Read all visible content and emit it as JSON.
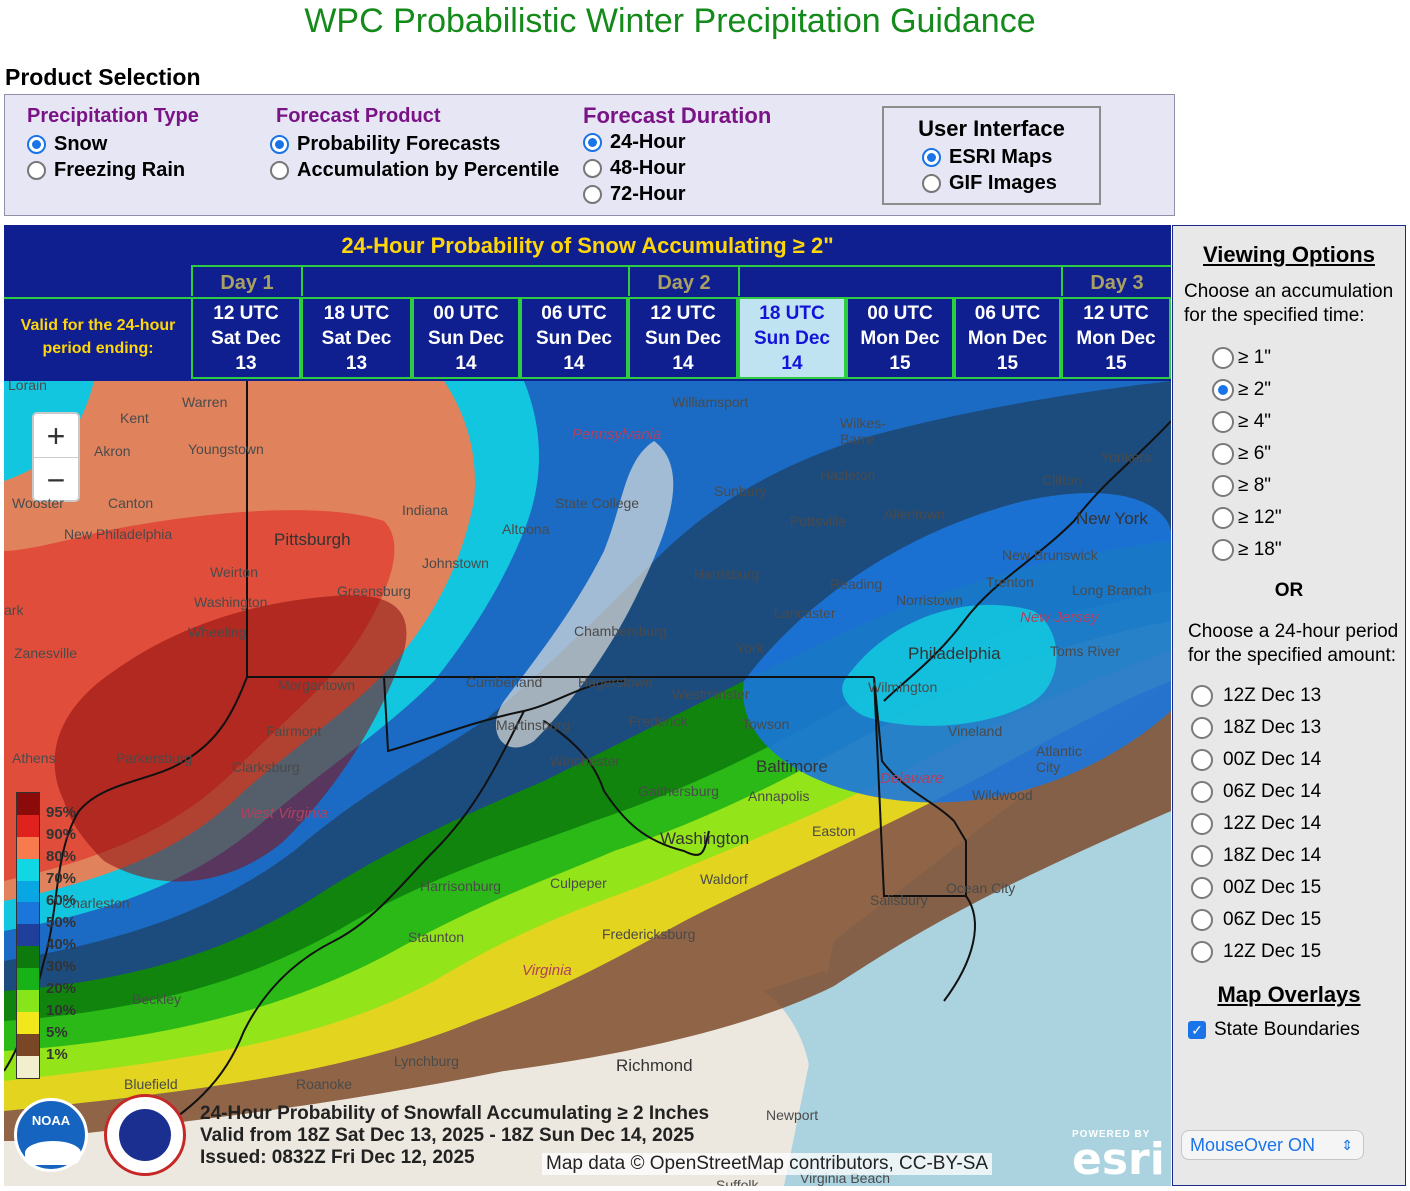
{
  "page_title": "WPC Probabilistic Winter Precipitation Guidance",
  "product_selection": {
    "heading": "Product Selection",
    "precip_type": {
      "title": "Precipitation Type",
      "options": [
        "Snow",
        "Freezing Rain"
      ],
      "selected": "Snow"
    },
    "forecast_product": {
      "title": "Forecast Product",
      "options": [
        "Probability Forecasts",
        "Accumulation by Percentile"
      ],
      "selected": "Probability Forecasts"
    },
    "forecast_duration": {
      "title": "Forecast Duration",
      "options": [
        "24-Hour",
        "48-Hour",
        "72-Hour"
      ],
      "selected": "24-Hour"
    },
    "user_interface": {
      "title": "User Interface",
      "options": [
        "ESRI Maps",
        "GIF Images"
      ],
      "selected": "ESRI Maps"
    }
  },
  "time_header": {
    "title": "24-Hour Probability of Snow Accumulating ≥ 2\"",
    "valid_label": "Valid for the 24-hour period ending:",
    "days": [
      "Day 1",
      "Day 2",
      "Day 3"
    ],
    "times": [
      {
        "l1": "12 UTC",
        "l2": "Sat Dec",
        "l3": "13"
      },
      {
        "l1": "18 UTC",
        "l2": "Sat Dec",
        "l3": "13"
      },
      {
        "l1": "00 UTC",
        "l2": "Sun Dec",
        "l3": "14"
      },
      {
        "l1": "06 UTC",
        "l2": "Sun Dec",
        "l3": "14"
      },
      {
        "l1": "12 UTC",
        "l2": "Sun Dec",
        "l3": "14"
      },
      {
        "l1": "18 UTC",
        "l2": "Sun Dec",
        "l3": "14"
      },
      {
        "l1": "00 UTC",
        "l2": "Mon Dec",
        "l3": "15"
      },
      {
        "l1": "06 UTC",
        "l2": "Mon Dec",
        "l3": "15"
      },
      {
        "l1": "12 UTC",
        "l2": "Mon Dec",
        "l3": "15"
      }
    ],
    "selected_index": 5
  },
  "map": {
    "zoom_in": "+",
    "zoom_out": "−",
    "legend": [
      "95%",
      "90%",
      "80%",
      "70%",
      "60%",
      "50%",
      "40%",
      "30%",
      "20%",
      "10%",
      "5%",
      "1%"
    ],
    "legend_colors": [
      "#8b0b0b",
      "#e0221f",
      "#f77b4f",
      "#11d6e4",
      "#08a6e2",
      "#1b76dc",
      "#1f3f9a",
      "#0c7a0c",
      "#17b217",
      "#86e61a",
      "#f2e71a",
      "#7a4726",
      "#f2efcf"
    ],
    "places": {
      "lorain": "Lorain",
      "warren": "Warren",
      "kent": "Kent",
      "akron": "Akron",
      "youngstown": "Youngstown",
      "wooster": "Wooster",
      "canton": "Canton",
      "new_philadelphia": "New Philadelphia",
      "indiana": "Indiana",
      "pittsburgh": "Pittsburgh",
      "johnstown": "Johnstown",
      "altoona": "Altoona",
      "state_college": "State College",
      "williamsport": "Williamsport",
      "pennsylvania": "Pennsylvania",
      "sunbury": "Sunbury",
      "wilkes_barre": "Wilkes-\nBarre",
      "hazleton": "Hazleton",
      "pottsville": "Pottsville",
      "allentown": "Allentown",
      "yonkers": "Yonkers",
      "clifton": "Clifton",
      "new_york": "New York",
      "new_brunswick": "New Brunswick",
      "trenton": "Trenton",
      "long_branch": "Long Branch",
      "harrisburg": "Harrisburg",
      "reading": "Reading",
      "norristown": "Norristown",
      "lancaster": "Lancaster",
      "new_jersey": "New Jersey",
      "weirton": "Weirton",
      "greensburg": "Greensburg",
      "washington": "Washington",
      "wheeling": "Wheeling",
      "zanesville": "Zanesville",
      "chambersburg": "Chambersburg",
      "york": "York",
      "philadelphia": "Philadelphia",
      "toms_river": "Toms River",
      "morgantown": "Morgantown",
      "cumberland": "Cumberland",
      "hagerstown": "Hagerstown",
      "westminster": "Westminster",
      "wilmington": "Wilmington",
      "martinsburg": "Martinsburg",
      "frederick": "Frederick",
      "towson": "Towson",
      "fairmont": "Fairmont",
      "vineland": "Vineland",
      "athens": "Athens",
      "parkersburg": "Parkersburg",
      "clarksburg": "Clarksburg",
      "winchester": "Winchester",
      "baltimore": "Baltimore",
      "atlantic_city": "Atlantic\nCity",
      "delaware": "Delaware",
      "gaithersburg": "Gaithersburg",
      "annapolis": "Annapolis",
      "wildwood": "Wildwood",
      "west_virginia": "West Virginia",
      "easton": "Easton",
      "dc": "Washington",
      "charleston": "Charleston",
      "harrisonburg": "Harrisonburg",
      "culpeper": "Culpeper",
      "waldorf": "Waldorf",
      "ocean_city": "Ocean City",
      "salisbury": "Salisbury",
      "fredericksburg": "Fredericksburg",
      "staunton": "Staunton",
      "virginia": "Virginia",
      "beckley": "Beckley",
      "lynchburg": "Lynchburg",
      "richmond": "Richmond",
      "roanoke": "Roanoke",
      "bluefield": "Bluefield",
      "newport": "Newport",
      "suffolk": "Suffolk",
      "virginia_beach": "Virginia Beach",
      "ark": "ark"
    },
    "caption": {
      "line1": "24-Hour Probability of Snowfall Accumulating ≥ 2 Inches",
      "line2": "Valid from 18Z Sat Dec 13, 2025 - 18Z Sun Dec 14, 2025",
      "line3": "Issued: 0832Z Fri Dec 12, 2025"
    },
    "attribution": "Map data © OpenStreetMap contributors, CC-BY-SA",
    "esri_powered": "POWERED BY",
    "esri_word": "esri",
    "noaa": "NOAA"
  },
  "viewing_options": {
    "heading": "Viewing Options",
    "choose_accum": "Choose an accumulation for the specified time:",
    "accum_options": [
      "≥ 1\"",
      "≥ 2\"",
      "≥ 4\"",
      "≥ 6\"",
      "≥ 8\"",
      "≥ 12\"",
      "≥ 18\""
    ],
    "accum_selected": 1,
    "or": "OR",
    "choose_period": "Choose a 24-hour period for the specified amount:",
    "periods": [
      "12Z Dec 13",
      "18Z Dec 13",
      "00Z Dec 14",
      "06Z Dec 14",
      "12Z Dec 14",
      "18Z Dec 14",
      "00Z Dec 15",
      "06Z Dec 15",
      "12Z Dec 15"
    ],
    "overlays_heading": "Map Overlays",
    "state_boundaries": "State Boundaries",
    "state_boundaries_checked": true,
    "mouseover": "MouseOver ON"
  }
}
